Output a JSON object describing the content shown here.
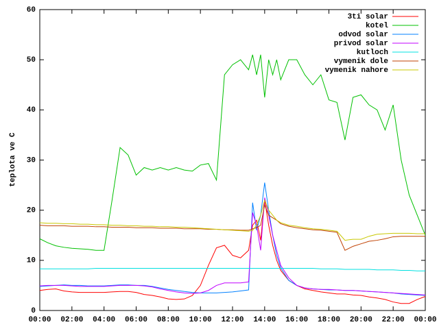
{
  "chart_data": {
    "type": "line",
    "y_label": "teplota ve C",
    "legend": "top-right",
    "grid": false,
    "x": [
      0,
      0.5,
      1,
      1.5,
      2,
      2.5,
      3,
      3.5,
      4,
      4.5,
      5,
      5.5,
      6,
      6.5,
      7,
      7.5,
      8,
      8.5,
      9,
      9.5,
      10,
      10.5,
      11,
      11.5,
      12,
      12.5,
      13,
      13.25,
      13.5,
      13.75,
      14,
      14.25,
      14.5,
      14.75,
      15,
      15.5,
      16,
      16.5,
      17,
      17.5,
      18,
      18.5,
      19,
      19.5,
      20,
      20.5,
      21,
      21.5,
      22,
      22.5,
      23,
      23.5,
      24
    ],
    "xlim": [
      0,
      24
    ],
    "xticks": [
      {
        "value": 0,
        "label": "00:00"
      },
      {
        "value": 2,
        "label": "02:00"
      },
      {
        "value": 4,
        "label": "04:00"
      },
      {
        "value": 6,
        "label": "06:00"
      },
      {
        "value": 8,
        "label": "08:00"
      },
      {
        "value": 10,
        "label": "10:00"
      },
      {
        "value": 12,
        "label": "12:00"
      },
      {
        "value": 14,
        "label": "14:00"
      },
      {
        "value": 16,
        "label": "16:00"
      },
      {
        "value": 18,
        "label": "18:00"
      },
      {
        "value": 20,
        "label": "20:00"
      },
      {
        "value": 22,
        "label": "22:00"
      },
      {
        "value": 24,
        "label": "00:00"
      }
    ],
    "ylim": [
      0,
      60
    ],
    "yticks": [
      0,
      10,
      20,
      30,
      40,
      50,
      60
    ],
    "series": [
      {
        "name": "3ti solar",
        "color": "#ff0000",
        "values": [
          4,
          4.2,
          4.3,
          3.9,
          3.7,
          3.6,
          3.6,
          3.6,
          3.6,
          3.7,
          3.8,
          3.8,
          3.6,
          3.2,
          3,
          2.7,
          2.3,
          2.2,
          2.3,
          3,
          5,
          9,
          12.5,
          13,
          11,
          10.5,
          12,
          17,
          18,
          14,
          22,
          17,
          13,
          10,
          8,
          6,
          5,
          4.3,
          4,
          3.7,
          3.5,
          3.3,
          3.3,
          3.1,
          3,
          2.7,
          2.5,
          2.2,
          1.7,
          1.4,
          1.4,
          2.2,
          2.8
        ]
      },
      {
        "name": "kotel",
        "color": "#00c000",
        "values": [
          14.3,
          13.5,
          12.9,
          12.6,
          12.4,
          12.3,
          12.2,
          12.0,
          12.0,
          22,
          32.5,
          31,
          27,
          28.5,
          28,
          28.5,
          28,
          28.5,
          28,
          27.8,
          29,
          29.3,
          26,
          47,
          49,
          50,
          48,
          51,
          47,
          51,
          42.5,
          50,
          47,
          50,
          46,
          50,
          50,
          47,
          45,
          47,
          42,
          41.5,
          34,
          42.5,
          43,
          41,
          40,
          36,
          41,
          30,
          23,
          19,
          15
        ]
      },
      {
        "name": "odvod solar",
        "color": "#0080ff",
        "values": [
          4.8,
          4.9,
          5.0,
          5.1,
          5.0,
          5.0,
          4.9,
          4.9,
          4.9,
          5.0,
          5.1,
          5.1,
          5.0,
          5.0,
          4.8,
          4.5,
          4.2,
          4.0,
          3.8,
          3.6,
          3.5,
          3.5,
          3.5,
          3.6,
          3.7,
          3.9,
          4.1,
          21.5,
          16,
          19,
          25.5,
          20,
          15,
          11,
          8.5,
          6,
          5,
          4.5,
          4.3,
          4.2,
          4.1,
          4.1,
          4.0,
          4.0,
          3.9,
          3.8,
          3.7,
          3.6,
          3.5,
          3.3,
          3.2,
          3.1,
          3.0
        ]
      },
      {
        "name": "privod solar",
        "color": "#c000ff",
        "values": [
          4.9,
          5.0,
          5.0,
          5.0,
          4.9,
          4.8,
          4.8,
          4.8,
          4.8,
          4.9,
          5.0,
          5.0,
          5.0,
          4.9,
          4.7,
          4.3,
          4.0,
          3.7,
          3.5,
          3.4,
          3.5,
          4.0,
          5.0,
          5.5,
          5.5,
          5.5,
          5.7,
          19.5,
          17,
          12,
          22.5,
          19,
          15,
          12,
          9,
          6.5,
          5,
          4.5,
          4.3,
          4.2,
          4.2,
          4.1,
          4.0,
          4.0,
          3.9,
          3.8,
          3.7,
          3.6,
          3.5,
          3.4,
          3.3,
          3.2,
          3.1
        ]
      },
      {
        "name": "kutloch",
        "color": "#00e0e0",
        "values": [
          8.3,
          8.3,
          8.3,
          8.3,
          8.3,
          8.3,
          8.3,
          8.4,
          8.4,
          8.4,
          8.4,
          8.4,
          8.4,
          8.4,
          8.4,
          8.4,
          8.4,
          8.4,
          8.4,
          8.4,
          8.4,
          8.4,
          8.4,
          8.4,
          8.4,
          8.4,
          8.4,
          8.4,
          8.4,
          8.4,
          8.4,
          8.4,
          8.4,
          8.4,
          8.4,
          8.4,
          8.4,
          8.4,
          8.4,
          8.3,
          8.3,
          8.3,
          8.2,
          8.2,
          8.2,
          8.2,
          8.1,
          8.1,
          8.1,
          8.0,
          8.0,
          7.9,
          7.9
        ]
      },
      {
        "name": "vymenik dole",
        "color": "#c04000",
        "values": [
          17.0,
          16.9,
          16.9,
          16.9,
          16.8,
          16.8,
          16.8,
          16.7,
          16.7,
          16.6,
          16.6,
          16.6,
          16.5,
          16.5,
          16.5,
          16.4,
          16.4,
          16.4,
          16.3,
          16.3,
          16.3,
          16.2,
          16.2,
          16.1,
          16.1,
          16.0,
          16.0,
          16.3,
          16.5,
          17,
          21,
          19,
          18.5,
          18,
          17.3,
          16.8,
          16.5,
          16.3,
          16.1,
          16,
          15.8,
          15.6,
          12,
          12.8,
          13.3,
          13.8,
          14,
          14.3,
          14.7,
          14.8,
          14.8,
          14.8,
          14.8
        ]
      },
      {
        "name": "vymenik nahore",
        "color": "#c8c800",
        "values": [
          17.5,
          17.4,
          17.4,
          17.3,
          17.3,
          17.2,
          17.2,
          17.1,
          17.1,
          17.0,
          17.0,
          16.9,
          16.9,
          16.8,
          16.8,
          16.7,
          16.7,
          16.6,
          16.6,
          16.5,
          16.4,
          16.3,
          16.2,
          16.1,
          16.0,
          15.9,
          15.8,
          16,
          17,
          19,
          22,
          20,
          19,
          18,
          17.5,
          17,
          16.8,
          16.5,
          16.3,
          16.2,
          16,
          15.8,
          14,
          14.2,
          14.2,
          14.8,
          15.2,
          15.3,
          15.4,
          15.4,
          15.4,
          15.3,
          15.3
        ]
      }
    ]
  }
}
